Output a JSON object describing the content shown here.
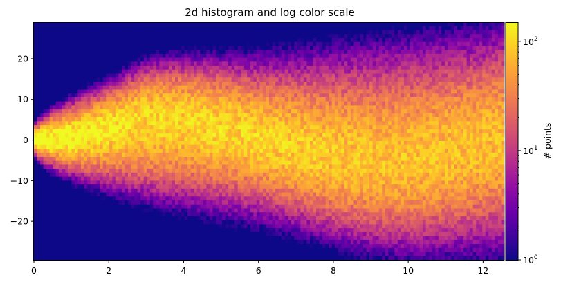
{
  "chart_data": {
    "type": "heatmap",
    "title": "2d histogram and log color scale",
    "xlabel": "",
    "ylabel": "",
    "xlim": [
      0,
      12.566
    ],
    "ylim": [
      -29.5,
      29.0
    ],
    "x_ticks": [
      {
        "value": 0,
        "label": "0"
      },
      {
        "value": 2,
        "label": "2"
      },
      {
        "value": 4,
        "label": "4"
      },
      {
        "value": 6,
        "label": "6"
      },
      {
        "value": 8,
        "label": "8"
      },
      {
        "value": 10,
        "label": "10"
      },
      {
        "value": 12,
        "label": "12"
      }
    ],
    "y_ticks": [
      {
        "value": 20,
        "label": "20"
      },
      {
        "value": 10,
        "label": "10"
      },
      {
        "value": 0,
        "label": "0"
      },
      {
        "value": -10,
        "label": "−10"
      },
      {
        "value": -20,
        "label": "−20"
      }
    ],
    "colormap": "plasma",
    "color_scale": "log",
    "colorbar": {
      "label": "# points",
      "range": [
        1,
        150
      ],
      "ticks": [
        {
          "value": 1,
          "base": "10",
          "exp": "0"
        },
        {
          "value": 10,
          "base": "10",
          "exp": "1"
        },
        {
          "value": 100,
          "base": "10",
          "exp": "2"
        }
      ]
    },
    "bins": {
      "x": 150,
      "y": 60
    },
    "density_model": {
      "description": "ensemble of random-walk series around a sinusoid",
      "center": {
        "amplitude": 7.0,
        "frequency": 0.5
      },
      "spread_std": {
        "base": 0.6,
        "growth": 2.4
      },
      "peak_count": 150
    },
    "grid": false
  }
}
